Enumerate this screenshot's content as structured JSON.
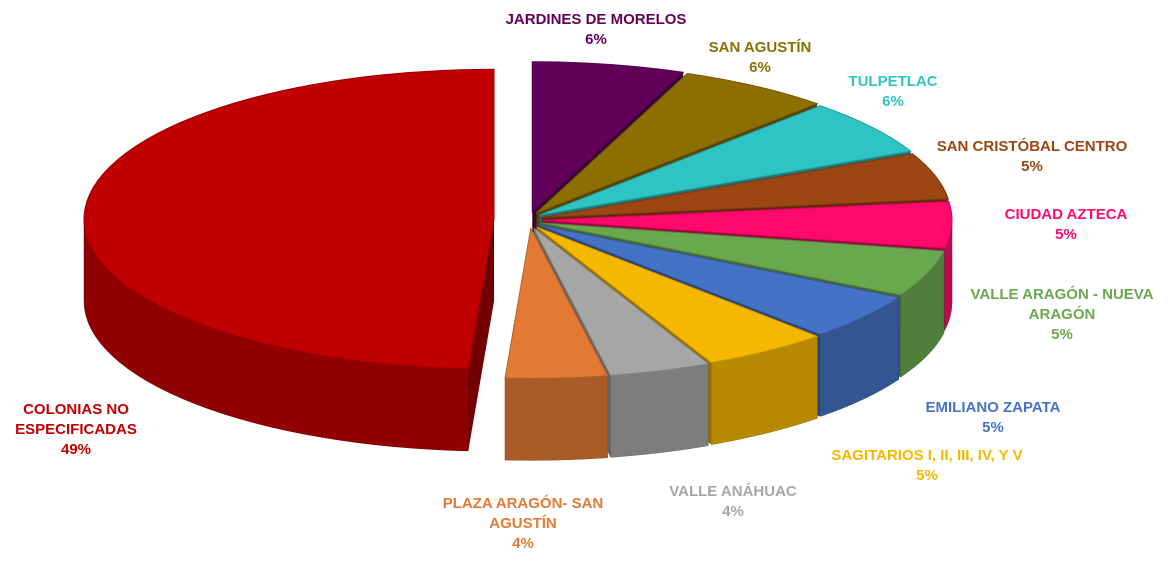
{
  "chart_data": {
    "type": "pie",
    "categories": [
      "JARDINES DE MORELOS",
      "SAN AGUSTÍN",
      "TULPETLAC",
      "SAN CRISTÓBAL CENTRO",
      "CIUDAD AZTECA",
      "VALLE ARAGÓN - NUEVA ARAGÓN",
      "EMILIANO ZAPATA",
      "SAGITARIOS I, II, III, IV, Y V",
      "VALLE ANÁHUAC",
      "PLAZA ARAGÓN- SAN AGUSTÍN",
      "COLONIAS NO ESPECIFICADAS"
    ],
    "values": [
      6,
      6,
      6,
      5,
      5,
      5,
      5,
      5,
      4,
      4,
      49
    ],
    "value_labels": [
      "6%",
      "6%",
      "6%",
      "5%",
      "5%",
      "5%",
      "5%",
      "5%",
      "4%",
      "4%",
      "49%"
    ],
    "colors": [
      "#620059",
      "#8c6f00",
      "#2fc4c4",
      "#9c4612",
      "#ff0a6c",
      "#6aa84f",
      "#4472c4",
      "#f5b700",
      "#a6a6a6",
      "#e27a35",
      "#c00000"
    ]
  }
}
